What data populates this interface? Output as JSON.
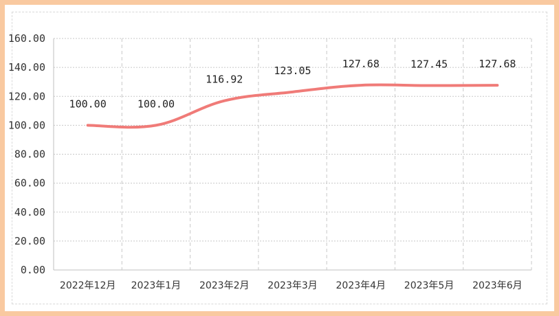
{
  "chart_data": {
    "type": "line",
    "categories": [
      "2022年12月",
      "2023年1月",
      "2023年2月",
      "2023年3月",
      "2023年4月",
      "2023年5月",
      "2023年6月"
    ],
    "series": [
      {
        "values": [
          100.0,
          100.0,
          116.92,
          123.05,
          127.68,
          127.45,
          127.68
        ]
      }
    ],
    "data_labels": [
      "100.00",
      "100.00",
      "116.92",
      "123.05",
      "127.68",
      "127.45",
      "127.68"
    ],
    "y_ticks": [
      "0.00",
      "20.00",
      "40.00",
      "60.00",
      "80.00",
      "100.00",
      "120.00",
      "140.00",
      "160.00"
    ],
    "ylim": [
      0,
      160
    ],
    "grid": true,
    "line_color": "#f07b78",
    "grid_color": "#c8c8c8",
    "frame_color": "#f9c9a0"
  }
}
